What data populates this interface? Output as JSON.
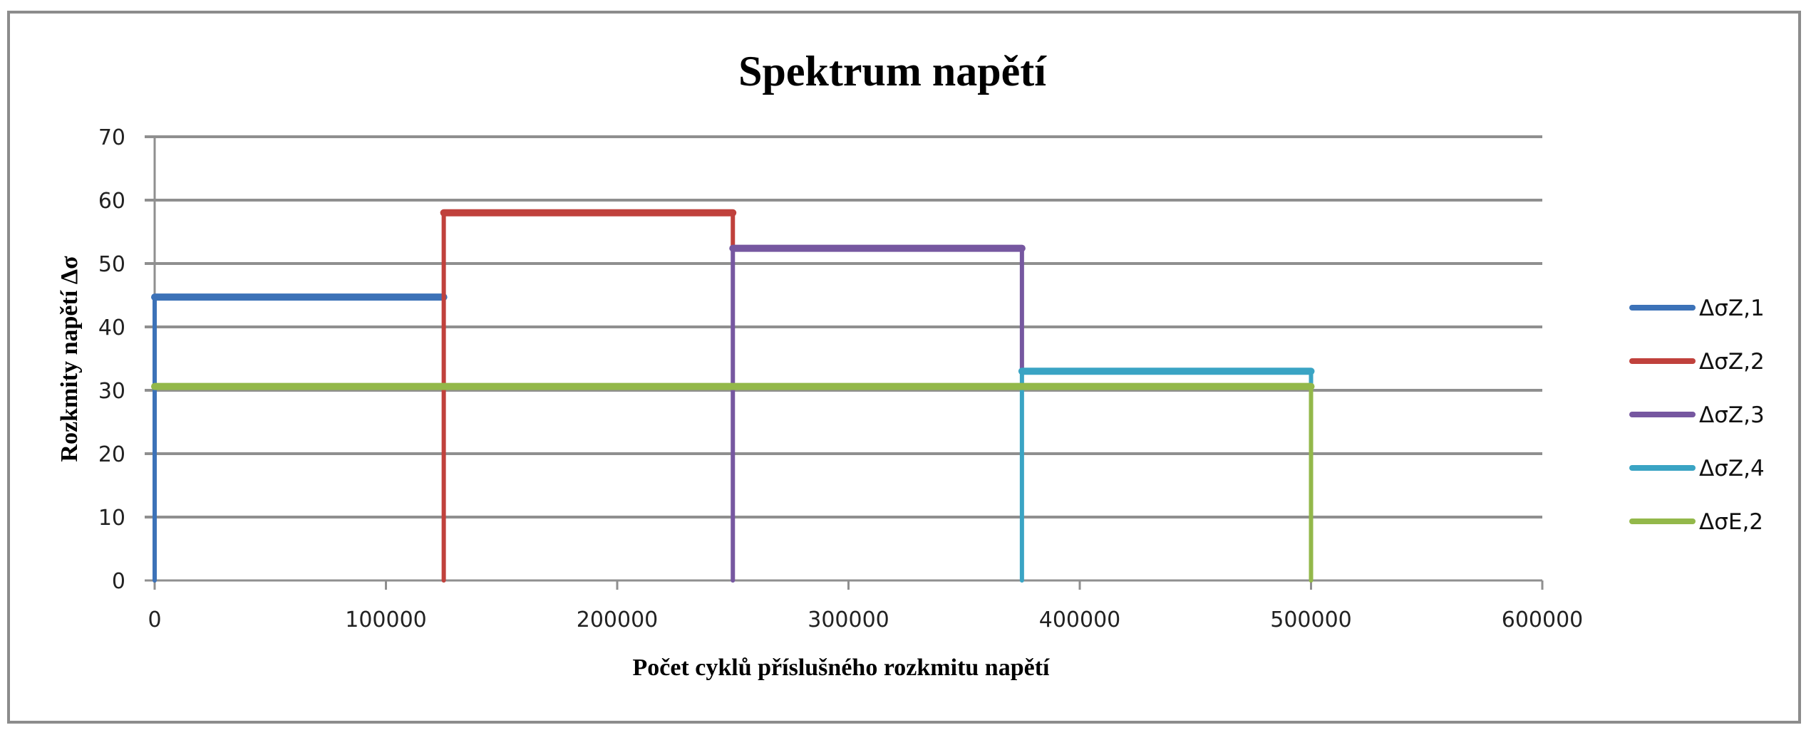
{
  "chart_data": {
    "type": "line",
    "subtype": "step",
    "title": "Spektrum napětí",
    "xlabel": "Počet cyklů příslušného rozkmitu napětí",
    "ylabel": "Rozkmity napětí Δσ",
    "xlim": [
      0,
      600000
    ],
    "ylim": [
      0,
      70
    ],
    "x_ticks": [
      0,
      100000,
      200000,
      300000,
      400000,
      500000,
      600000
    ],
    "x_tick_labels": [
      "0",
      "100000",
      "200000",
      "300000",
      "400000",
      "500000",
      "600000"
    ],
    "y_ticks": [
      0,
      10,
      20,
      30,
      40,
      50,
      60,
      70
    ],
    "y_tick_labels": [
      "0",
      "10",
      "20",
      "30",
      "40",
      "50",
      "60",
      "70"
    ],
    "grid": {
      "horizontal": true,
      "vertical": false
    },
    "legend_position": "right",
    "series": [
      {
        "name": "ΔσZ,1",
        "color": "#3c72b8",
        "points": [
          [
            0,
            0
          ],
          [
            0,
            44.7
          ],
          [
            125000,
            44.7
          ]
        ],
        "level": 44.7,
        "x_range": [
          0,
          125000
        ]
      },
      {
        "name": "ΔσZ,2",
        "color": "#c0413c",
        "points": [
          [
            125000,
            0
          ],
          [
            125000,
            58.0
          ],
          [
            250000,
            58.0
          ],
          [
            250000,
            52.4
          ]
        ],
        "level": 58.0,
        "x_range": [
          125000,
          250000
        ]
      },
      {
        "name": "ΔσZ,3",
        "color": "#7657a0",
        "points": [
          [
            250000,
            0
          ],
          [
            250000,
            52.4
          ],
          [
            375000,
            52.4
          ],
          [
            375000,
            33.0
          ]
        ],
        "level": 52.4,
        "x_range": [
          250000,
          375000
        ]
      },
      {
        "name": "ΔσZ,4",
        "color": "#3aa4c4",
        "points": [
          [
            375000,
            0
          ],
          [
            375000,
            33.0
          ],
          [
            500000,
            33.0
          ],
          [
            500000,
            30.6
          ]
        ],
        "level": 33.0,
        "x_range": [
          375000,
          500000
        ]
      },
      {
        "name": "ΔσE,2",
        "color": "#93b84a",
        "points": [
          [
            0,
            30.6
          ],
          [
            500000,
            30.6
          ],
          [
            500000,
            0
          ]
        ],
        "level": 30.6,
        "x_range": [
          0,
          500000
        ]
      }
    ]
  }
}
